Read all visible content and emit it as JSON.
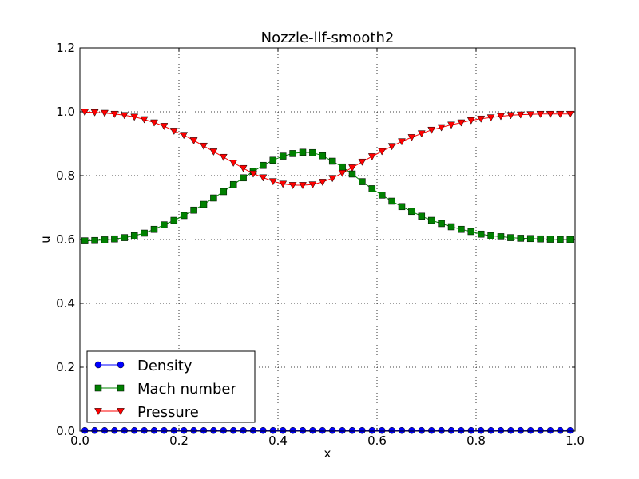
{
  "chart_data": {
    "type": "line",
    "title": "Nozzle-llf-smooth2",
    "xlabel": "x",
    "ylabel": "u",
    "xlim": [
      0.0,
      1.0
    ],
    "ylim": [
      0.0,
      1.2
    ],
    "x_ticks": [
      "0.0",
      "0.2",
      "0.4",
      "0.6",
      "0.8",
      "1.0"
    ],
    "y_ticks": [
      "0.0",
      "0.2",
      "0.4",
      "0.6",
      "0.8",
      "1.0",
      "1.2"
    ],
    "grid": true,
    "legend_position": "lower-left",
    "x": [
      0.01,
      0.03,
      0.05,
      0.07,
      0.09,
      0.11,
      0.13,
      0.15,
      0.17,
      0.19,
      0.21,
      0.23,
      0.25,
      0.27,
      0.29,
      0.31,
      0.33,
      0.35,
      0.37,
      0.39,
      0.41,
      0.43,
      0.45,
      0.47,
      0.49,
      0.51,
      0.53,
      0.55,
      0.57,
      0.59,
      0.61,
      0.63,
      0.65,
      0.67,
      0.69,
      0.71,
      0.73,
      0.75,
      0.77,
      0.79,
      0.81,
      0.83,
      0.85,
      0.87,
      0.89,
      0.91,
      0.93,
      0.95,
      0.97,
      0.99
    ],
    "series": [
      {
        "name": "Density",
        "color": "#0000ff",
        "marker": "circle",
        "values": [
          0.002,
          0.002,
          0.002,
          0.002,
          0.002,
          0.002,
          0.002,
          0.002,
          0.002,
          0.002,
          0.002,
          0.002,
          0.002,
          0.002,
          0.002,
          0.002,
          0.002,
          0.002,
          0.002,
          0.002,
          0.002,
          0.002,
          0.002,
          0.002,
          0.002,
          0.002,
          0.002,
          0.002,
          0.002,
          0.002,
          0.002,
          0.002,
          0.002,
          0.002,
          0.002,
          0.002,
          0.002,
          0.002,
          0.002,
          0.002,
          0.002,
          0.002,
          0.002,
          0.002,
          0.002,
          0.002,
          0.002,
          0.002,
          0.002,
          0.002
        ]
      },
      {
        "name": "Mach number",
        "color": "#008000",
        "marker": "square",
        "values": [
          0.596,
          0.597,
          0.599,
          0.602,
          0.606,
          0.612,
          0.62,
          0.632,
          0.646,
          0.66,
          0.675,
          0.692,
          0.71,
          0.73,
          0.75,
          0.772,
          0.793,
          0.813,
          0.832,
          0.848,
          0.861,
          0.869,
          0.873,
          0.872,
          0.862,
          0.845,
          0.827,
          0.805,
          0.781,
          0.759,
          0.739,
          0.72,
          0.703,
          0.688,
          0.673,
          0.66,
          0.65,
          0.64,
          0.632,
          0.625,
          0.617,
          0.612,
          0.609,
          0.606,
          0.604,
          0.603,
          0.602,
          0.601,
          0.6,
          0.6
        ]
      },
      {
        "name": "Pressure",
        "color": "#ff0000",
        "marker": "triangle-down",
        "values": [
          0.999,
          0.998,
          0.996,
          0.993,
          0.989,
          0.984,
          0.976,
          0.966,
          0.955,
          0.94,
          0.927,
          0.91,
          0.893,
          0.875,
          0.858,
          0.84,
          0.823,
          0.806,
          0.794,
          0.782,
          0.774,
          0.77,
          0.77,
          0.772,
          0.78,
          0.792,
          0.808,
          0.825,
          0.843,
          0.86,
          0.876,
          0.892,
          0.907,
          0.92,
          0.932,
          0.943,
          0.951,
          0.959,
          0.966,
          0.973,
          0.978,
          0.982,
          0.986,
          0.989,
          0.991,
          0.992,
          0.993,
          0.993,
          0.993,
          0.993
        ]
      }
    ]
  }
}
